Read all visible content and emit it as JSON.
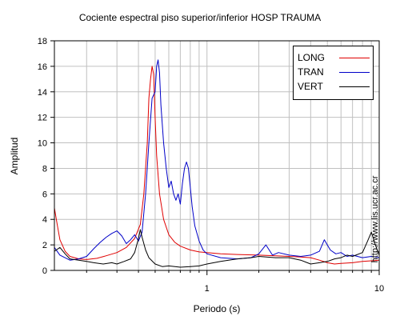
{
  "chart_data": {
    "type": "line",
    "title": "Cociente espectral piso superior/inferior  HOSP TRAUMA",
    "xlabel": "Periodo (s)",
    "ylabel": "Amplitud",
    "xscale": "log",
    "xlim": [
      0.13,
      10
    ],
    "ylim": [
      0,
      18
    ],
    "yticks": [
      0,
      2,
      4,
      6,
      8,
      10,
      12,
      14,
      16,
      18
    ],
    "xticks": [
      1,
      10
    ],
    "grid": true,
    "legend_position": "top-right",
    "series": [
      {
        "name": "LONG",
        "color": "#e00000",
        "points": [
          [
            0.13,
            4.9
          ],
          [
            0.135,
            3.6
          ],
          [
            0.14,
            2.4
          ],
          [
            0.15,
            1.5
          ],
          [
            0.16,
            1.1
          ],
          [
            0.18,
            0.9
          ],
          [
            0.2,
            0.85
          ],
          [
            0.23,
            0.95
          ],
          [
            0.26,
            1.15
          ],
          [
            0.3,
            1.4
          ],
          [
            0.34,
            1.8
          ],
          [
            0.38,
            2.5
          ],
          [
            0.41,
            3.6
          ],
          [
            0.43,
            6.0
          ],
          [
            0.45,
            10.0
          ],
          [
            0.46,
            13.5
          ],
          [
            0.47,
            15.0
          ],
          [
            0.48,
            16.0
          ],
          [
            0.49,
            15.4
          ],
          [
            0.5,
            12.0
          ],
          [
            0.51,
            9.0
          ],
          [
            0.53,
            6.0
          ],
          [
            0.56,
            4.0
          ],
          [
            0.6,
            2.8
          ],
          [
            0.65,
            2.2
          ],
          [
            0.7,
            1.9
          ],
          [
            0.8,
            1.6
          ],
          [
            0.9,
            1.45
          ],
          [
            1.0,
            1.4
          ],
          [
            1.2,
            1.3
          ],
          [
            1.5,
            1.25
          ],
          [
            2.0,
            1.2
          ],
          [
            2.5,
            1.15
          ],
          [
            3.0,
            1.1
          ],
          [
            3.5,
            1.05
          ],
          [
            4.0,
            1.0
          ],
          [
            4.5,
            0.8
          ],
          [
            5.0,
            0.6
          ],
          [
            5.5,
            0.5
          ],
          [
            6.0,
            0.55
          ],
          [
            7.0,
            0.6
          ],
          [
            8.0,
            0.7
          ],
          [
            9.0,
            0.75
          ],
          [
            10.0,
            0.8
          ]
        ]
      },
      {
        "name": "TRAN",
        "color": "#0000c8",
        "points": [
          [
            0.13,
            1.8
          ],
          [
            0.14,
            1.2
          ],
          [
            0.16,
            0.8
          ],
          [
            0.18,
            0.9
          ],
          [
            0.2,
            1.1
          ],
          [
            0.22,
            1.7
          ],
          [
            0.24,
            2.2
          ],
          [
            0.26,
            2.6
          ],
          [
            0.28,
            2.9
          ],
          [
            0.3,
            3.1
          ],
          [
            0.32,
            2.7
          ],
          [
            0.34,
            2.1
          ],
          [
            0.36,
            2.4
          ],
          [
            0.38,
            2.8
          ],
          [
            0.4,
            2.3
          ],
          [
            0.42,
            3.0
          ],
          [
            0.44,
            6.0
          ],
          [
            0.46,
            10.0
          ],
          [
            0.48,
            13.5
          ],
          [
            0.5,
            14.0
          ],
          [
            0.51,
            16.0
          ],
          [
            0.52,
            16.5
          ],
          [
            0.53,
            15.5
          ],
          [
            0.54,
            13.0
          ],
          [
            0.56,
            10.0
          ],
          [
            0.58,
            8.0
          ],
          [
            0.6,
            6.5
          ],
          [
            0.62,
            7.0
          ],
          [
            0.64,
            6.0
          ],
          [
            0.66,
            5.5
          ],
          [
            0.68,
            6.0
          ],
          [
            0.7,
            5.2
          ],
          [
            0.72,
            6.8
          ],
          [
            0.74,
            8.0
          ],
          [
            0.76,
            8.5
          ],
          [
            0.78,
            8.0
          ],
          [
            0.8,
            6.5
          ],
          [
            0.82,
            5.0
          ],
          [
            0.85,
            3.5
          ],
          [
            0.9,
            2.3
          ],
          [
            0.95,
            1.6
          ],
          [
            1.0,
            1.3
          ],
          [
            1.2,
            1.0
          ],
          [
            1.5,
            0.9
          ],
          [
            1.8,
            1.0
          ],
          [
            2.0,
            1.3
          ],
          [
            2.2,
            2.0
          ],
          [
            2.4,
            1.2
          ],
          [
            2.6,
            1.4
          ],
          [
            3.0,
            1.2
          ],
          [
            3.5,
            1.1
          ],
          [
            4.0,
            1.2
          ],
          [
            4.5,
            1.5
          ],
          [
            4.8,
            2.4
          ],
          [
            5.2,
            1.6
          ],
          [
            5.6,
            1.3
          ],
          [
            6.0,
            1.4
          ],
          [
            6.5,
            1.1
          ],
          [
            7.0,
            1.2
          ],
          [
            8.0,
            1.0
          ],
          [
            9.0,
            1.1
          ],
          [
            10.0,
            1.0
          ]
        ]
      },
      {
        "name": "VERT",
        "color": "#000000",
        "points": [
          [
            0.13,
            1.5
          ],
          [
            0.14,
            1.8
          ],
          [
            0.15,
            1.3
          ],
          [
            0.16,
            0.9
          ],
          [
            0.18,
            0.8
          ],
          [
            0.2,
            0.7
          ],
          [
            0.22,
            0.6
          ],
          [
            0.25,
            0.5
          ],
          [
            0.28,
            0.6
          ],
          [
            0.3,
            0.5
          ],
          [
            0.33,
            0.7
          ],
          [
            0.36,
            0.9
          ],
          [
            0.38,
            1.4
          ],
          [
            0.4,
            2.5
          ],
          [
            0.41,
            3.2
          ],
          [
            0.42,
            2.6
          ],
          [
            0.44,
            1.6
          ],
          [
            0.46,
            1.0
          ],
          [
            0.5,
            0.5
          ],
          [
            0.55,
            0.3
          ],
          [
            0.6,
            0.35
          ],
          [
            0.7,
            0.25
          ],
          [
            0.8,
            0.3
          ],
          [
            0.9,
            0.35
          ],
          [
            1.0,
            0.5
          ],
          [
            1.2,
            0.7
          ],
          [
            1.5,
            0.9
          ],
          [
            1.8,
            1.0
          ],
          [
            2.0,
            1.1
          ],
          [
            2.5,
            1.0
          ],
          [
            3.0,
            1.0
          ],
          [
            3.5,
            0.8
          ],
          [
            4.0,
            0.5
          ],
          [
            4.5,
            0.6
          ],
          [
            5.0,
            0.7
          ],
          [
            5.5,
            0.9
          ],
          [
            6.0,
            1.0
          ],
          [
            6.5,
            1.2
          ],
          [
            7.0,
            1.1
          ],
          [
            8.0,
            1.4
          ],
          [
            8.5,
            2.2
          ],
          [
            9.0,
            3.0
          ],
          [
            9.5,
            2.0
          ],
          [
            10.0,
            1.2
          ]
        ]
      }
    ]
  },
  "watermark": "http://www.lis.ucr.ac.cr"
}
